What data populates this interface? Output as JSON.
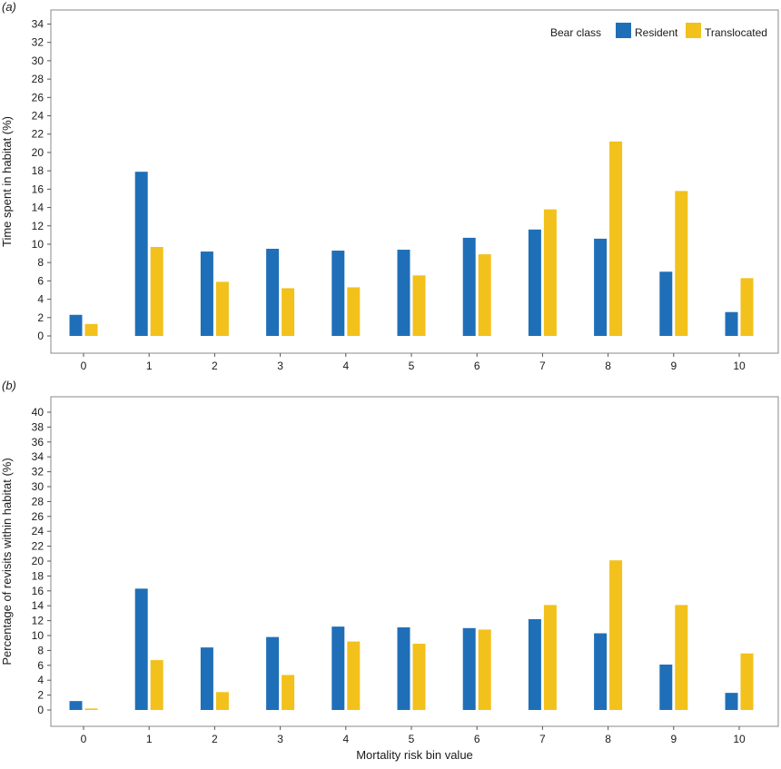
{
  "colors": {
    "resident": "#1f6fb8",
    "translocated": "#f2c11b",
    "frame": "#8a8a8a"
  },
  "legend": {
    "title": "Bear class",
    "items": [
      "Resident",
      "Translocated"
    ]
  },
  "chart_data": [
    {
      "type": "bar",
      "panel_label": "(a)",
      "ylabel": "Time spent in habitat (%)",
      "xlabel": "",
      "categories": [
        "0",
        "1",
        "2",
        "3",
        "4",
        "5",
        "6",
        "7",
        "8",
        "9",
        "10"
      ],
      "ylim": [
        0,
        35
      ],
      "yticks": [
        0,
        2,
        4,
        6,
        8,
        10,
        12,
        14,
        16,
        18,
        20,
        22,
        24,
        26,
        28,
        30,
        32,
        34
      ],
      "legend_position": "top-right",
      "grid": false,
      "series": [
        {
          "name": "Resident",
          "values": [
            2.3,
            17.9,
            9.2,
            9.5,
            9.3,
            9.4,
            10.7,
            11.6,
            10.6,
            7.0,
            2.6
          ]
        },
        {
          "name": "Translocated",
          "values": [
            1.3,
            9.7,
            5.9,
            5.2,
            5.3,
            6.6,
            8.9,
            13.8,
            21.2,
            15.8,
            6.3
          ]
        }
      ]
    },
    {
      "type": "bar",
      "panel_label": "(b)",
      "ylabel": "Percentage of revisits within habitat (%)",
      "xlabel": "Mortality risk bin value",
      "categories": [
        "0",
        "1",
        "2",
        "3",
        "4",
        "5",
        "6",
        "7",
        "8",
        "9",
        "10"
      ],
      "ylim": [
        0,
        41
      ],
      "yticks": [
        0,
        2,
        4,
        6,
        8,
        10,
        12,
        14,
        16,
        18,
        20,
        22,
        24,
        26,
        28,
        30,
        32,
        34,
        36,
        38,
        40
      ],
      "grid": false,
      "series": [
        {
          "name": "Resident",
          "values": [
            1.2,
            16.3,
            8.4,
            9.8,
            11.2,
            11.1,
            11.0,
            12.2,
            10.3,
            6.1,
            2.3
          ]
        },
        {
          "name": "Translocated",
          "values": [
            0.2,
            6.7,
            2.4,
            4.7,
            9.2,
            8.9,
            10.8,
            14.1,
            20.1,
            14.1,
            7.6
          ]
        }
      ]
    }
  ]
}
